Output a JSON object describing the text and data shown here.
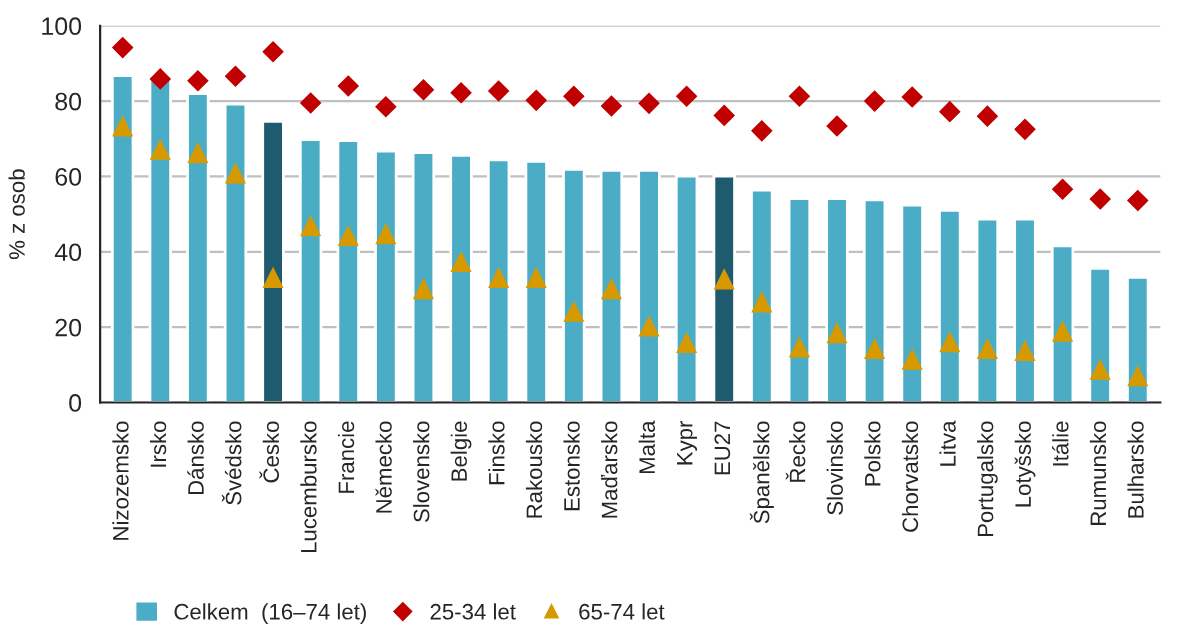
{
  "chart_data": {
    "type": "bar",
    "ylabel": "% z osob",
    "categories": [
      "Nizozemsko",
      "Irsko",
      "Dánsko",
      "Švédsko",
      "Česko",
      "Lucembursko",
      "Francie",
      "Německo",
      "Slovensko",
      "Belgie",
      "Finsko",
      "Rakousko",
      "Estonsko",
      "Maďarsko",
      "Malta",
      "Kypr",
      "EU27",
      "Španělsko",
      "Řecko",
      "Slovinsko",
      "Polsko",
      "Chorvatsko",
      "Litva",
      "Portugalsko",
      "Lotyšsko",
      "Itálie",
      "Rumunsko",
      "Bulharsko"
    ],
    "series": [
      {
        "name": "Celkem  (16–74 let)",
        "color": "#4bacc6",
        "colors": [
          "#4bacc6",
          "#4bacc6",
          "#4bacc6",
          "#4bacc6",
          "#1f5b6e",
          "#4bacc6",
          "#4bacc6",
          "#4bacc6",
          "#4bacc6",
          "#4bacc6",
          "#4bacc6",
          "#4bacc6",
          "#4bacc6",
          "#4bacc6",
          "#4bacc6",
          "#4bacc6",
          "#1f5b6e",
          "#4bacc6",
          "#4bacc6",
          "#4bacc6",
          "#4bacc6",
          "#4bacc6",
          "#4bacc6",
          "#4bacc6",
          "#4bacc6",
          "#4bacc6",
          "#4bacc6",
          "#4bacc6"
        ],
        "values": [
          86.8,
          86.2,
          82,
          79.2,
          74.6,
          69.8,
          69.5,
          66.7,
          66.3,
          65.6,
          64.4,
          64,
          61.9,
          61.6,
          61.6,
          60.1,
          60.1,
          56.4,
          54.1,
          54.1,
          53.8,
          52.4,
          51,
          48.7,
          48.7,
          41.6,
          35.6,
          33.2
        ]
      },
      {
        "name": "25-34 let",
        "type": "scatter",
        "marker": "diamond",
        "color": "#c00000",
        "values": [
          94.2,
          85.9,
          85.4,
          86.6,
          93.1,
          79.5,
          84,
          78.5,
          83,
          82.2,
          82.7,
          80.2,
          81.3,
          78.7,
          79.4,
          81.3,
          76.2,
          72.1,
          81.3,
          73.4,
          80,
          81.1,
          77.2,
          76,
          72.5,
          56.6,
          54,
          53.6
        ]
      },
      {
        "name": "65-74 let",
        "type": "scatter",
        "marker": "triangle",
        "color": "#d69a00",
        "values": [
          73.2,
          67,
          66.1,
          60.7,
          33,
          46.7,
          44.1,
          44.6,
          30,
          37.2,
          33,
          33,
          24,
          30,
          20.1,
          15.7,
          32.6,
          26.5,
          14.5,
          18.3,
          14.1,
          11.3,
          15.9,
          14.1,
          13.6,
          18.7,
          8.6,
          6.9
        ]
      }
    ],
    "ylim": [
      0,
      100
    ],
    "yticks": [
      0,
      20,
      40,
      60,
      80,
      100
    ],
    "grid": "y",
    "legend": "bottom"
  }
}
